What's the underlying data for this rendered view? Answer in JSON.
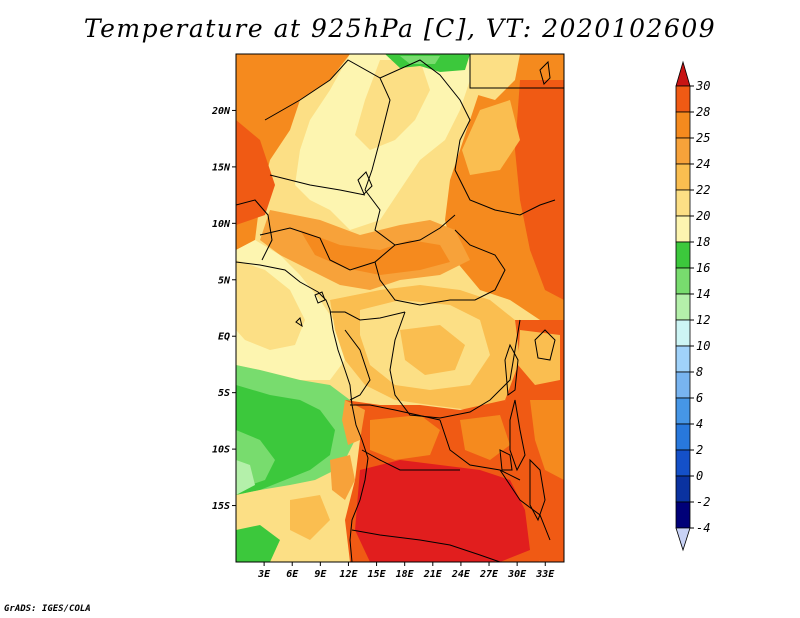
{
  "title": "Temperature at 925hPa [C], VT: 2020102609",
  "credit": "GrADS: IGES/COLA",
  "map": {
    "lon_range": [
      0,
      35
    ],
    "lat_range": [
      -20,
      25
    ],
    "lat_ticks": [
      {
        "value": 20,
        "label": "20N"
      },
      {
        "value": 15,
        "label": "15N"
      },
      {
        "value": 10,
        "label": "10N"
      },
      {
        "value": 5,
        "label": "5N"
      },
      {
        "value": 0,
        "label": "EQ"
      },
      {
        "value": -5,
        "label": "5S"
      },
      {
        "value": -10,
        "label": "10S"
      },
      {
        "value": -15,
        "label": "15S"
      }
    ],
    "lon_ticks": [
      {
        "value": 3,
        "label": "3E"
      },
      {
        "value": 6,
        "label": "6E"
      },
      {
        "value": 9,
        "label": "9E"
      },
      {
        "value": 12,
        "label": "12E"
      },
      {
        "value": 15,
        "label": "15E"
      },
      {
        "value": 18,
        "label": "18E"
      },
      {
        "value": 21,
        "label": "21E"
      },
      {
        "value": 24,
        "label": "24E"
      },
      {
        "value": 27,
        "label": "27E"
      },
      {
        "value": 30,
        "label": "30E"
      },
      {
        "value": 33,
        "label": "33E"
      }
    ]
  },
  "colorbar": {
    "labels": [
      "30",
      "28",
      "25",
      "24",
      "22",
      "20",
      "18",
      "16",
      "14",
      "12",
      "10",
      "8",
      "6",
      "4",
      "2",
      "0",
      "-2",
      "-4"
    ],
    "colors": [
      "#e11e1e",
      "#f05a14",
      "#f58a1e",
      "#f7a23a",
      "#fabe50",
      "#fcdf85",
      "#fdf5b0",
      "#3cc83c",
      "#78dc6e",
      "#b4f0aa",
      "#cdf5f5",
      "#a0d2fa",
      "#78b4f0",
      "#4696e6",
      "#2878dc",
      "#1450c8",
      "#0a32a0",
      "#000078"
    ],
    "top_arrow_color": "#c81414",
    "bottom_arrow_color": "#c8d2f5"
  }
}
